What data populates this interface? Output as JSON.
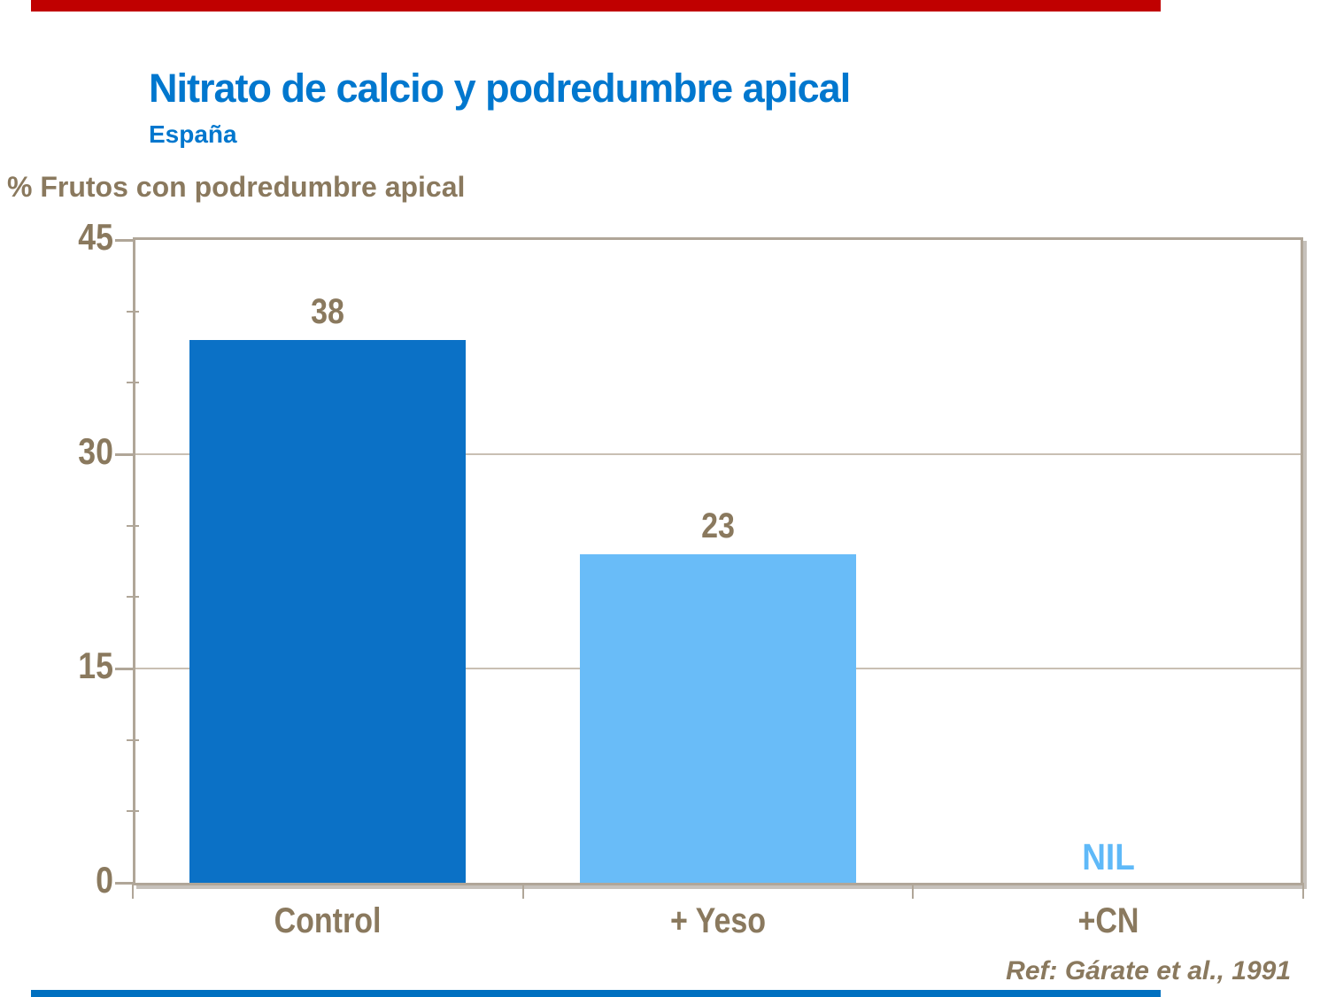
{
  "palette": {
    "top_bar_red": "#C00000",
    "bottom_bar_blue": "#0070C0",
    "title_blue": "#0077CE",
    "brown": "#8A795E",
    "axis_tan": "#B0A698",
    "gridline_tan": "#C9BFB3",
    "nil_blue": "#5FB9F8"
  },
  "header": {
    "title": "Nitrato de calcio y podredumbre apical",
    "subtitle": "España"
  },
  "footer": {
    "reference": "Ref: Gárate et al., 1991"
  },
  "chart_data": {
    "type": "bar",
    "title": "Nitrato de calcio y podredumbre apical",
    "subtitle": "España",
    "ylabel": "% Frutos con podredumbre apical",
    "xlabel": "",
    "categories": [
      "Control",
      "+ Yeso",
      "+CN"
    ],
    "values": [
      38,
      23,
      null
    ],
    "value_labels": [
      "38",
      "23",
      "NIL"
    ],
    "bar_colors": [
      "#0B71C6",
      "#69BCF8",
      null
    ],
    "nil_label_color": "#5FB9F8",
    "ylim": [
      0,
      45
    ],
    "yticks": [
      0,
      15,
      30,
      45
    ],
    "minor_tick_step": 5,
    "grid": "horizontal major gridlines at 15 and 30",
    "legend": "none",
    "axis_color": "#B0A698",
    "gridline_color": "#C9BFB3",
    "label_color": "#8A795E"
  }
}
